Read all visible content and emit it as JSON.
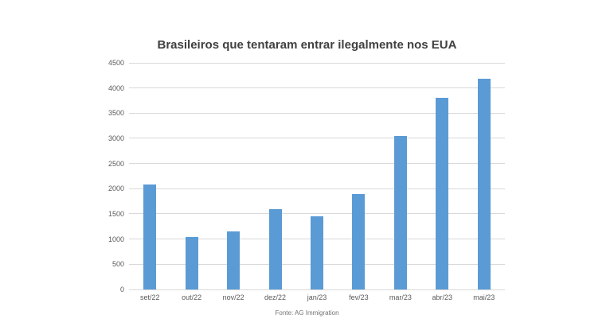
{
  "chart_data": {
    "type": "bar",
    "title": "Brasileiros que tentaram entrar ilegalmente nos EUA",
    "source": "Fonte: AG Immigration",
    "categories": [
      "set/22",
      "out/22",
      "nov/22",
      "dez/22",
      "jan/23",
      "fev/23",
      "mar/23",
      "abr/23",
      "mai/23"
    ],
    "values": [
      2080,
      1050,
      1160,
      1590,
      1450,
      1900,
      3050,
      3810,
      4190
    ],
    "xlabel": "",
    "ylabel": "",
    "ylim": [
      0,
      4500
    ],
    "ytick_step": 500,
    "grid": true,
    "legend": false,
    "colors": {
      "bar": "#5b9bd5",
      "gridline": "#d9d9d9",
      "title": "#404040",
      "axis_labels": "#595959",
      "source": "#737373",
      "background": "#ffffff"
    }
  }
}
